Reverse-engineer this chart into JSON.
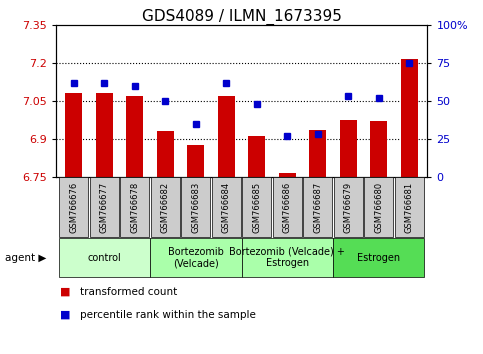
{
  "title": "GDS4089 / ILMN_1673395",
  "samples": [
    "GSM766676",
    "GSM766677",
    "GSM766678",
    "GSM766682",
    "GSM766683",
    "GSM766684",
    "GSM766685",
    "GSM766686",
    "GSM766687",
    "GSM766679",
    "GSM766680",
    "GSM766681"
  ],
  "bar_values": [
    7.08,
    7.08,
    7.07,
    6.93,
    6.875,
    7.07,
    6.91,
    6.765,
    6.935,
    6.975,
    6.97,
    7.215
  ],
  "scatter_values": [
    62,
    62,
    60,
    50,
    35,
    62,
    48,
    27,
    28,
    53,
    52,
    75
  ],
  "ylim_left": [
    6.75,
    7.35
  ],
  "ylim_right": [
    0,
    100
  ],
  "yticks_left": [
    6.75,
    6.9,
    7.05,
    7.2,
    7.35
  ],
  "ytick_labels_left": [
    "6.75",
    "6.9",
    "7.05",
    "7.2",
    "7.35"
  ],
  "yticks_right": [
    0,
    25,
    50,
    75,
    100
  ],
  "ytick_labels_right": [
    "0",
    "25",
    "50",
    "75",
    "100%"
  ],
  "hlines": [
    6.9,
    7.05,
    7.2
  ],
  "bar_color": "#cc0000",
  "scatter_color": "#0000cc",
  "bar_bottom": 6.75,
  "group_colors": [
    "#ccffcc",
    "#aaffaa",
    "#aaffaa",
    "#55dd55"
  ],
  "group_labels": [
    "control",
    "Bortezomib\n(Velcade)",
    "Bortezomib (Velcade) +\nEstrogen",
    "Estrogen"
  ],
  "group_ranges": [
    [
      0,
      3
    ],
    [
      3,
      6
    ],
    [
      6,
      9
    ],
    [
      9,
      12
    ]
  ],
  "legend_bar_label": "transformed count",
  "legend_scatter_label": "percentile rank within the sample",
  "tick_label_bg": "#cccccc",
  "title_fontsize": 11,
  "tick_fontsize": 8,
  "legend_fontsize": 7.5,
  "group_fontsize": 7,
  "sample_fontsize": 6
}
